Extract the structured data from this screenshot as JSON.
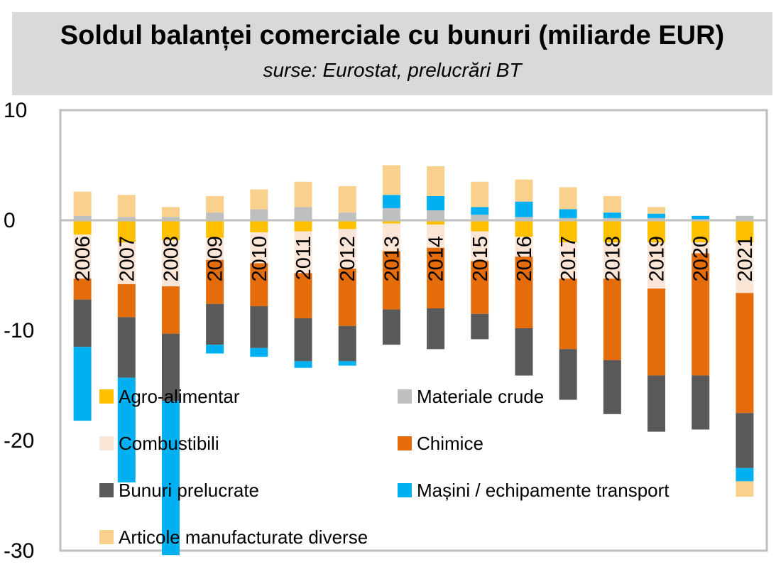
{
  "header": {
    "title": "Soldul balanței comerciale cu bunuri (miliarde EUR)",
    "subtitle": "surse: Eurostat, prelucrări BT"
  },
  "chart_data": {
    "type": "bar",
    "stacked": true,
    "title": "Soldul balanței comerciale cu bunuri (miliarde EUR)",
    "subtitle": "surse: Eurostat, prelucrări BT",
    "xlabel": "",
    "ylabel": "",
    "ylim": [
      -30,
      10
    ],
    "yticks": [
      10,
      0,
      -10,
      -20,
      -30
    ],
    "grid": false,
    "legend_position": "bottom",
    "categories": [
      "2006",
      "2007",
      "2008",
      "2009",
      "2010",
      "2011",
      "2012",
      "2013",
      "2014",
      "2015",
      "2016",
      "2017",
      "2018",
      "2019",
      "2020",
      "2021"
    ],
    "series": [
      {
        "name": "Agro-alimentar",
        "color": "#ffc000",
        "values": [
          -1.3,
          -2.0,
          -1.8,
          -1.6,
          -1.1,
          -1.0,
          -0.8,
          -0.3,
          -0.4,
          -1.0,
          -1.5,
          -2.0,
          -2.0,
          -2.0,
          -2.0,
          -2.0
        ]
      },
      {
        "name": "Materiale crude",
        "color": "#bfbfbf",
        "values": [
          0.4,
          0.3,
          0.3,
          0.7,
          1.0,
          1.2,
          0.7,
          1.1,
          0.9,
          0.5,
          0.3,
          0.2,
          0.2,
          0.2,
          0.1,
          0.4
        ]
      },
      {
        "name": "Combustibili",
        "color": "#fbe5d6",
        "values": [
          -4.0,
          -3.8,
          -4.2,
          -2.0,
          -2.8,
          -3.8,
          -3.6,
          -2.5,
          -2.1,
          -2.7,
          -1.8,
          -3.3,
          -3.3,
          -4.2,
          -1.0,
          -4.6
        ]
      },
      {
        "name": "Chimice",
        "color": "#e46c0a",
        "values": [
          -1.9,
          -3.0,
          -4.3,
          -4.0,
          -3.9,
          -4.1,
          -5.2,
          -5.3,
          -5.5,
          -4.8,
          -6.5,
          -6.4,
          -7.4,
          -7.9,
          -11.1,
          -10.9
        ]
      },
      {
        "name": "Bunuri prelucrate",
        "color": "#595959",
        "values": [
          -4.3,
          -5.5,
          -6.1,
          -3.7,
          -3.8,
          -3.9,
          -3.2,
          -3.2,
          -3.7,
          -2.3,
          -4.3,
          -4.6,
          -4.9,
          -5.1,
          -4.9,
          -5.0
        ]
      },
      {
        "name": "Mașini / echipamente transport",
        "color": "#00b0f0",
        "values": [
          -6.7,
          -9.5,
          -14.0,
          -0.8,
          -0.8,
          -0.6,
          -0.4,
          1.2,
          1.3,
          0.7,
          1.4,
          0.8,
          0.5,
          0.4,
          0.3,
          -1.2
        ]
      },
      {
        "name": "Articole manufacturate diverse",
        "color": "#f9d08c",
        "values": [
          2.2,
          2.0,
          0.9,
          1.5,
          1.8,
          2.3,
          2.4,
          2.7,
          2.7,
          2.3,
          2.0,
          2.0,
          1.5,
          0.6,
          0,
          -1.4
        ]
      }
    ]
  }
}
